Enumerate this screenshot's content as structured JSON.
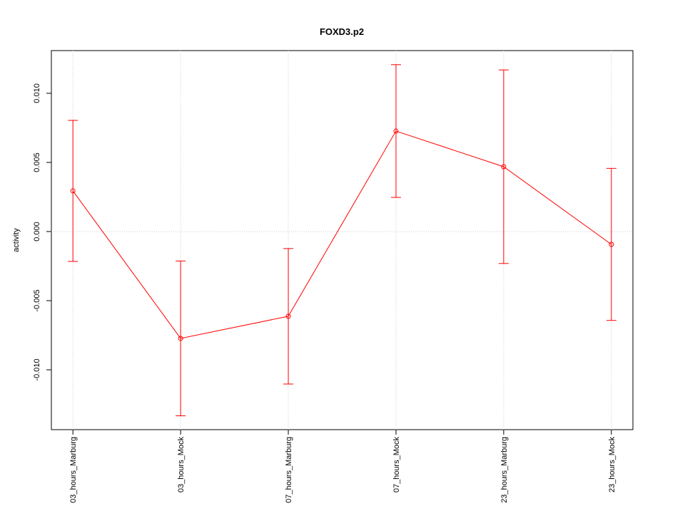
{
  "chart_data": {
    "type": "line",
    "title": "FOXD3.p2",
    "y_label": "activity",
    "categories": [
      "03_hours_Marburg",
      "03_hours_Mock",
      "07_hours_Marburg",
      "07_hours_Mock",
      "23_hours_Marburg",
      "23_hours_Mock"
    ],
    "series": [
      {
        "color": "#ff0000",
        "values": [
          0.00294,
          -0.00773,
          -0.00613,
          0.00727,
          0.00469,
          -0.00093
        ],
        "errors": [
          0.0051,
          0.0056,
          0.0049,
          0.0048,
          0.007,
          0.0055
        ]
      }
    ],
    "ylim": [
      -0.01433,
      0.01309
    ],
    "yticks": [
      {
        "value": -0.01,
        "label": "-0.010"
      },
      {
        "value": -0.005,
        "label": "-0.005"
      },
      {
        "value": 0,
        "label": "0.000"
      },
      {
        "value": 0.005,
        "label": "0.005"
      },
      {
        "value": 0.01,
        "label": "0.010"
      }
    ],
    "grid": true
  }
}
